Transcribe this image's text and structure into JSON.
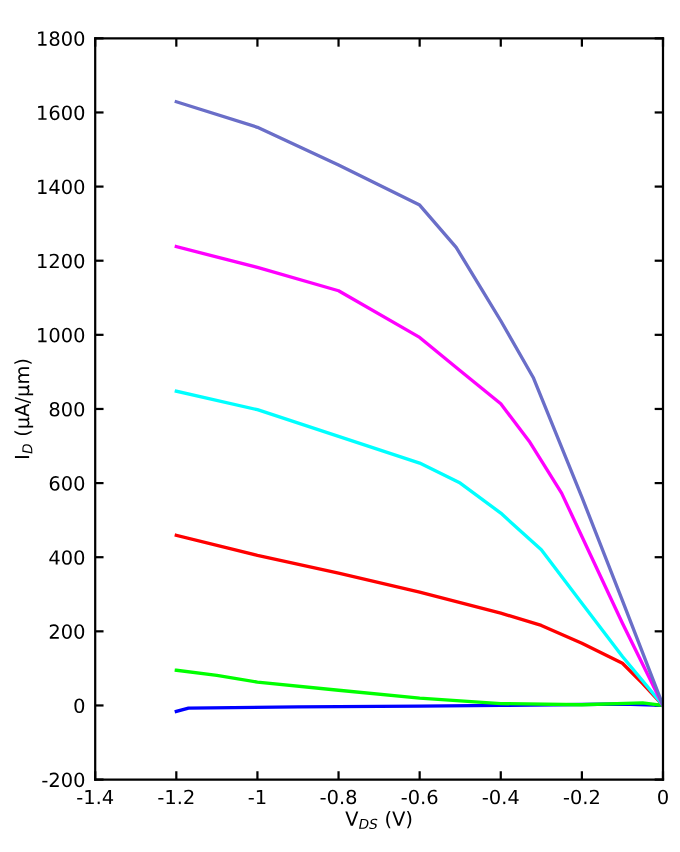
{
  "chart_data": {
    "type": "line",
    "xlabel": "V$_{DS}$ (V)",
    "ylabel": "I$_{D}$ (μA/μm)",
    "xlim": [
      -1.4,
      0
    ],
    "xticks": [
      -1.4,
      -1.2,
      -1,
      -0.8,
      -0.6,
      -0.4,
      -0.2,
      0
    ],
    "ylim": [
      -200,
      1800
    ],
    "yticks": [
      -200,
      0,
      200,
      400,
      600,
      800,
      1000,
      1200,
      1400,
      1600,
      1800
    ],
    "grid": false,
    "legend": false,
    "series": [
      {
        "color": "#0000ff",
        "x": [
          -1.2,
          -1.17,
          -0.9,
          -0.6,
          -0.4,
          -0.1,
          0
        ],
        "values": [
          -16,
          -7,
          -4,
          -2,
          0,
          4,
          0
        ]
      },
      {
        "color": "#00ff00",
        "x": [
          -1.2,
          -1.1,
          -1.0,
          -0.8,
          -0.6,
          -0.4,
          -0.2,
          -0.05,
          0
        ],
        "values": [
          95,
          81,
          63,
          41,
          20,
          5,
          2,
          7,
          0
        ]
      },
      {
        "color": "#ff0000",
        "x": [
          -1.2,
          -1.0,
          -0.8,
          -0.6,
          -0.4,
          -0.3,
          -0.2,
          -0.1,
          -0.05,
          0
        ],
        "values": [
          459,
          405,
          357,
          306,
          249,
          216,
          168,
          114,
          59,
          0
        ]
      },
      {
        "color": "#00ffff",
        "x": [
          -1.2,
          -1.0,
          -0.8,
          -0.6,
          -0.5,
          -0.4,
          -0.3,
          -0.2,
          -0.1,
          0
        ],
        "values": [
          848,
          798,
          726,
          654,
          600,
          519,
          420,
          276,
          132,
          0
        ]
      },
      {
        "color": "#ff00ff",
        "x": [
          -1.2,
          -1.0,
          -0.8,
          -0.6,
          -0.5,
          -0.4,
          -0.33,
          -0.25,
          -0.2,
          -0.1,
          0
        ],
        "values": [
          1238,
          1182,
          1119,
          993,
          903,
          814,
          713,
          573,
          456,
          222,
          0
        ]
      },
      {
        "color": "#6a6ec8",
        "x": [
          -1.2,
          -1.0,
          -0.8,
          -0.6,
          -0.51,
          -0.45,
          -0.4,
          -0.32,
          -0.2,
          -0.1,
          0
        ],
        "values": [
          1629,
          1560,
          1458,
          1350,
          1236,
          1128,
          1038,
          885,
          562,
          283,
          0
        ]
      }
    ]
  }
}
